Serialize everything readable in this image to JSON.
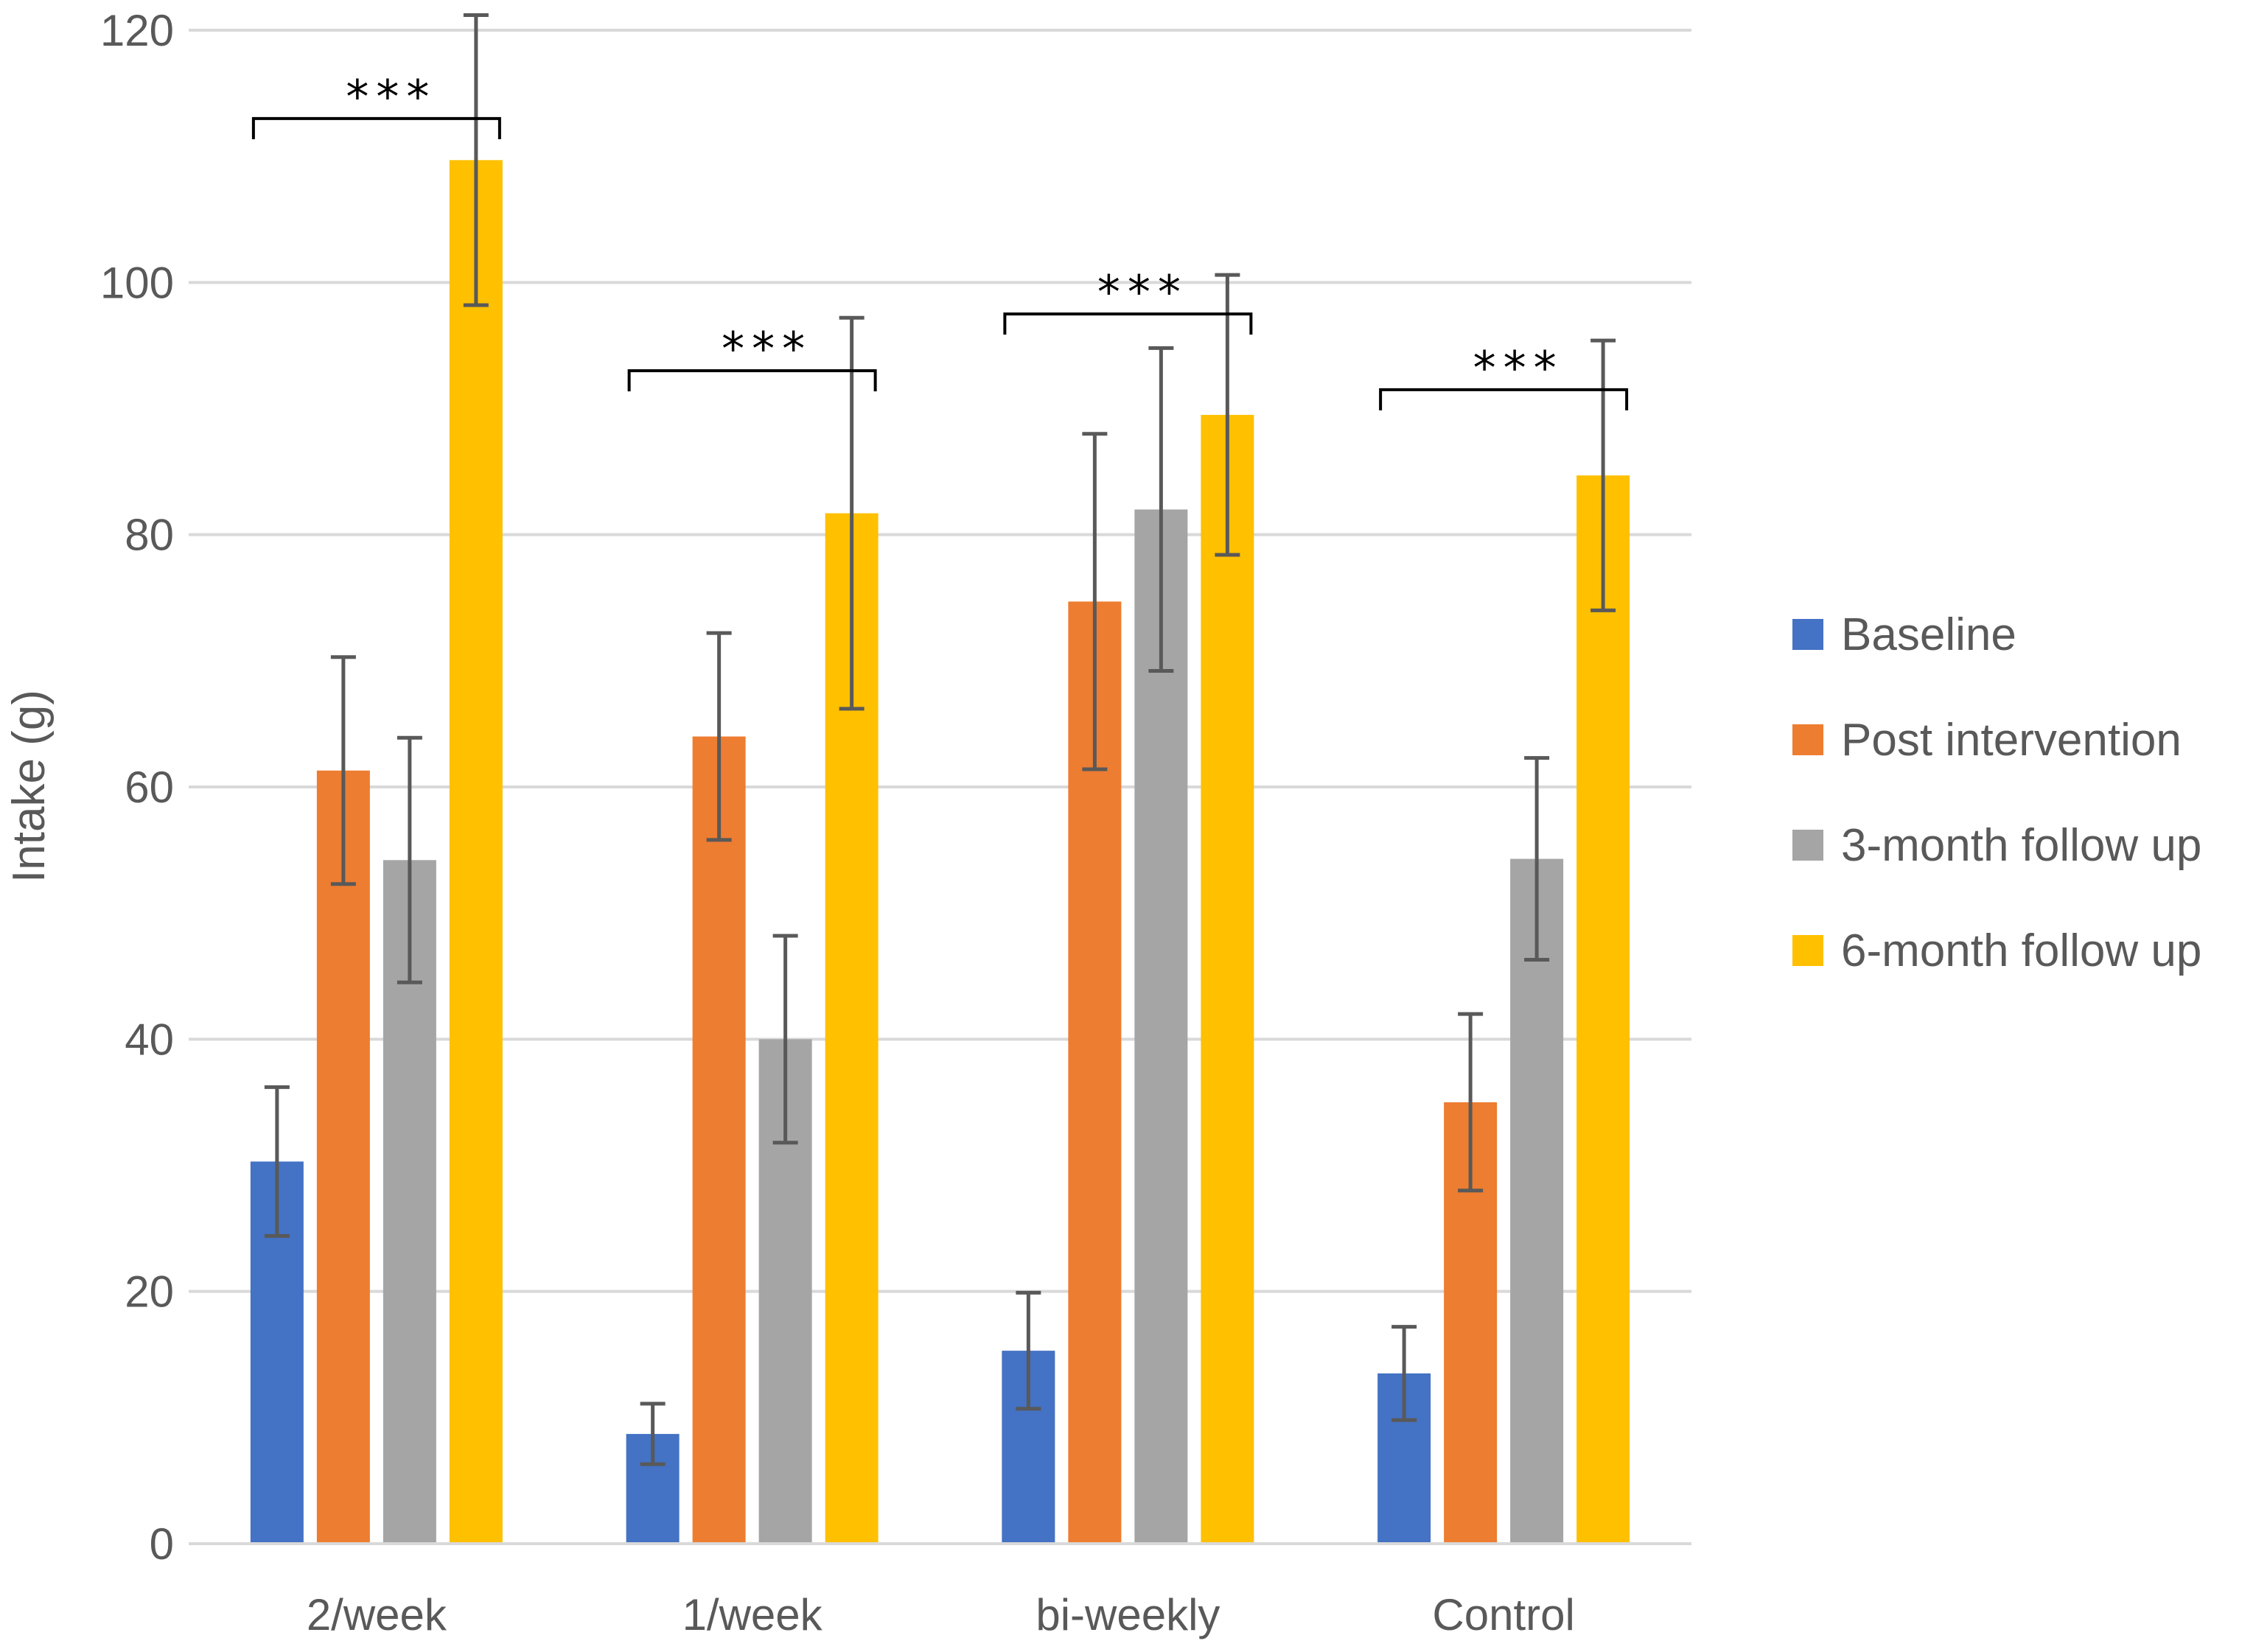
{
  "chart_data": {
    "type": "bar",
    "title": "",
    "xlabel": "",
    "ylabel": "Intake (g)",
    "ylim": [
      0,
      120
    ],
    "yticks": [
      0,
      20,
      40,
      60,
      80,
      100,
      120
    ],
    "grid": true,
    "legend_position": "right",
    "categories": [
      "2/week",
      "1/week",
      "bi-weekly",
      "Control"
    ],
    "series": [
      {
        "name": "Baseline",
        "color": "#4472C4",
        "values": [
          30.3,
          8.7,
          15.3,
          13.5
        ],
        "errors": [
          5.9,
          2.4,
          4.6,
          3.7
        ]
      },
      {
        "name": "Post intervention",
        "color": "#ED7D31",
        "values": [
          61.3,
          64.0,
          74.7,
          35.0
        ],
        "errors": [
          9.0,
          8.2,
          13.3,
          7.0
        ]
      },
      {
        "name": "3-month follow up",
        "color": "#A5A5A5",
        "values": [
          54.2,
          40.0,
          82.0,
          54.3
        ],
        "errors": [
          9.7,
          8.2,
          12.8,
          8.0
        ]
      },
      {
        "name": "6-month follow up",
        "color": "#FFC000",
        "values": [
          109.7,
          81.7,
          89.5,
          84.7
        ],
        "errors": [
          11.5,
          15.5,
          11.1,
          10.7
        ]
      }
    ],
    "annotations": [
      {
        "category": "2/week",
        "text": "***",
        "from_series": 0,
        "to_series": 3,
        "y": 113
      },
      {
        "category": "1/week",
        "text": "***",
        "from_series": 0,
        "to_series": 3,
        "y": 93
      },
      {
        "category": "bi-weekly",
        "text": "***",
        "from_series": 0,
        "to_series": 3,
        "y": 97.5
      },
      {
        "category": "Control",
        "text": "***",
        "from_series": 0,
        "to_series": 3,
        "y": 91.5
      }
    ],
    "colors": {
      "grid": "#D9D9D9",
      "axis": "#D9D9D9",
      "error_bar": "#595959",
      "bracket": "#000000"
    }
  }
}
